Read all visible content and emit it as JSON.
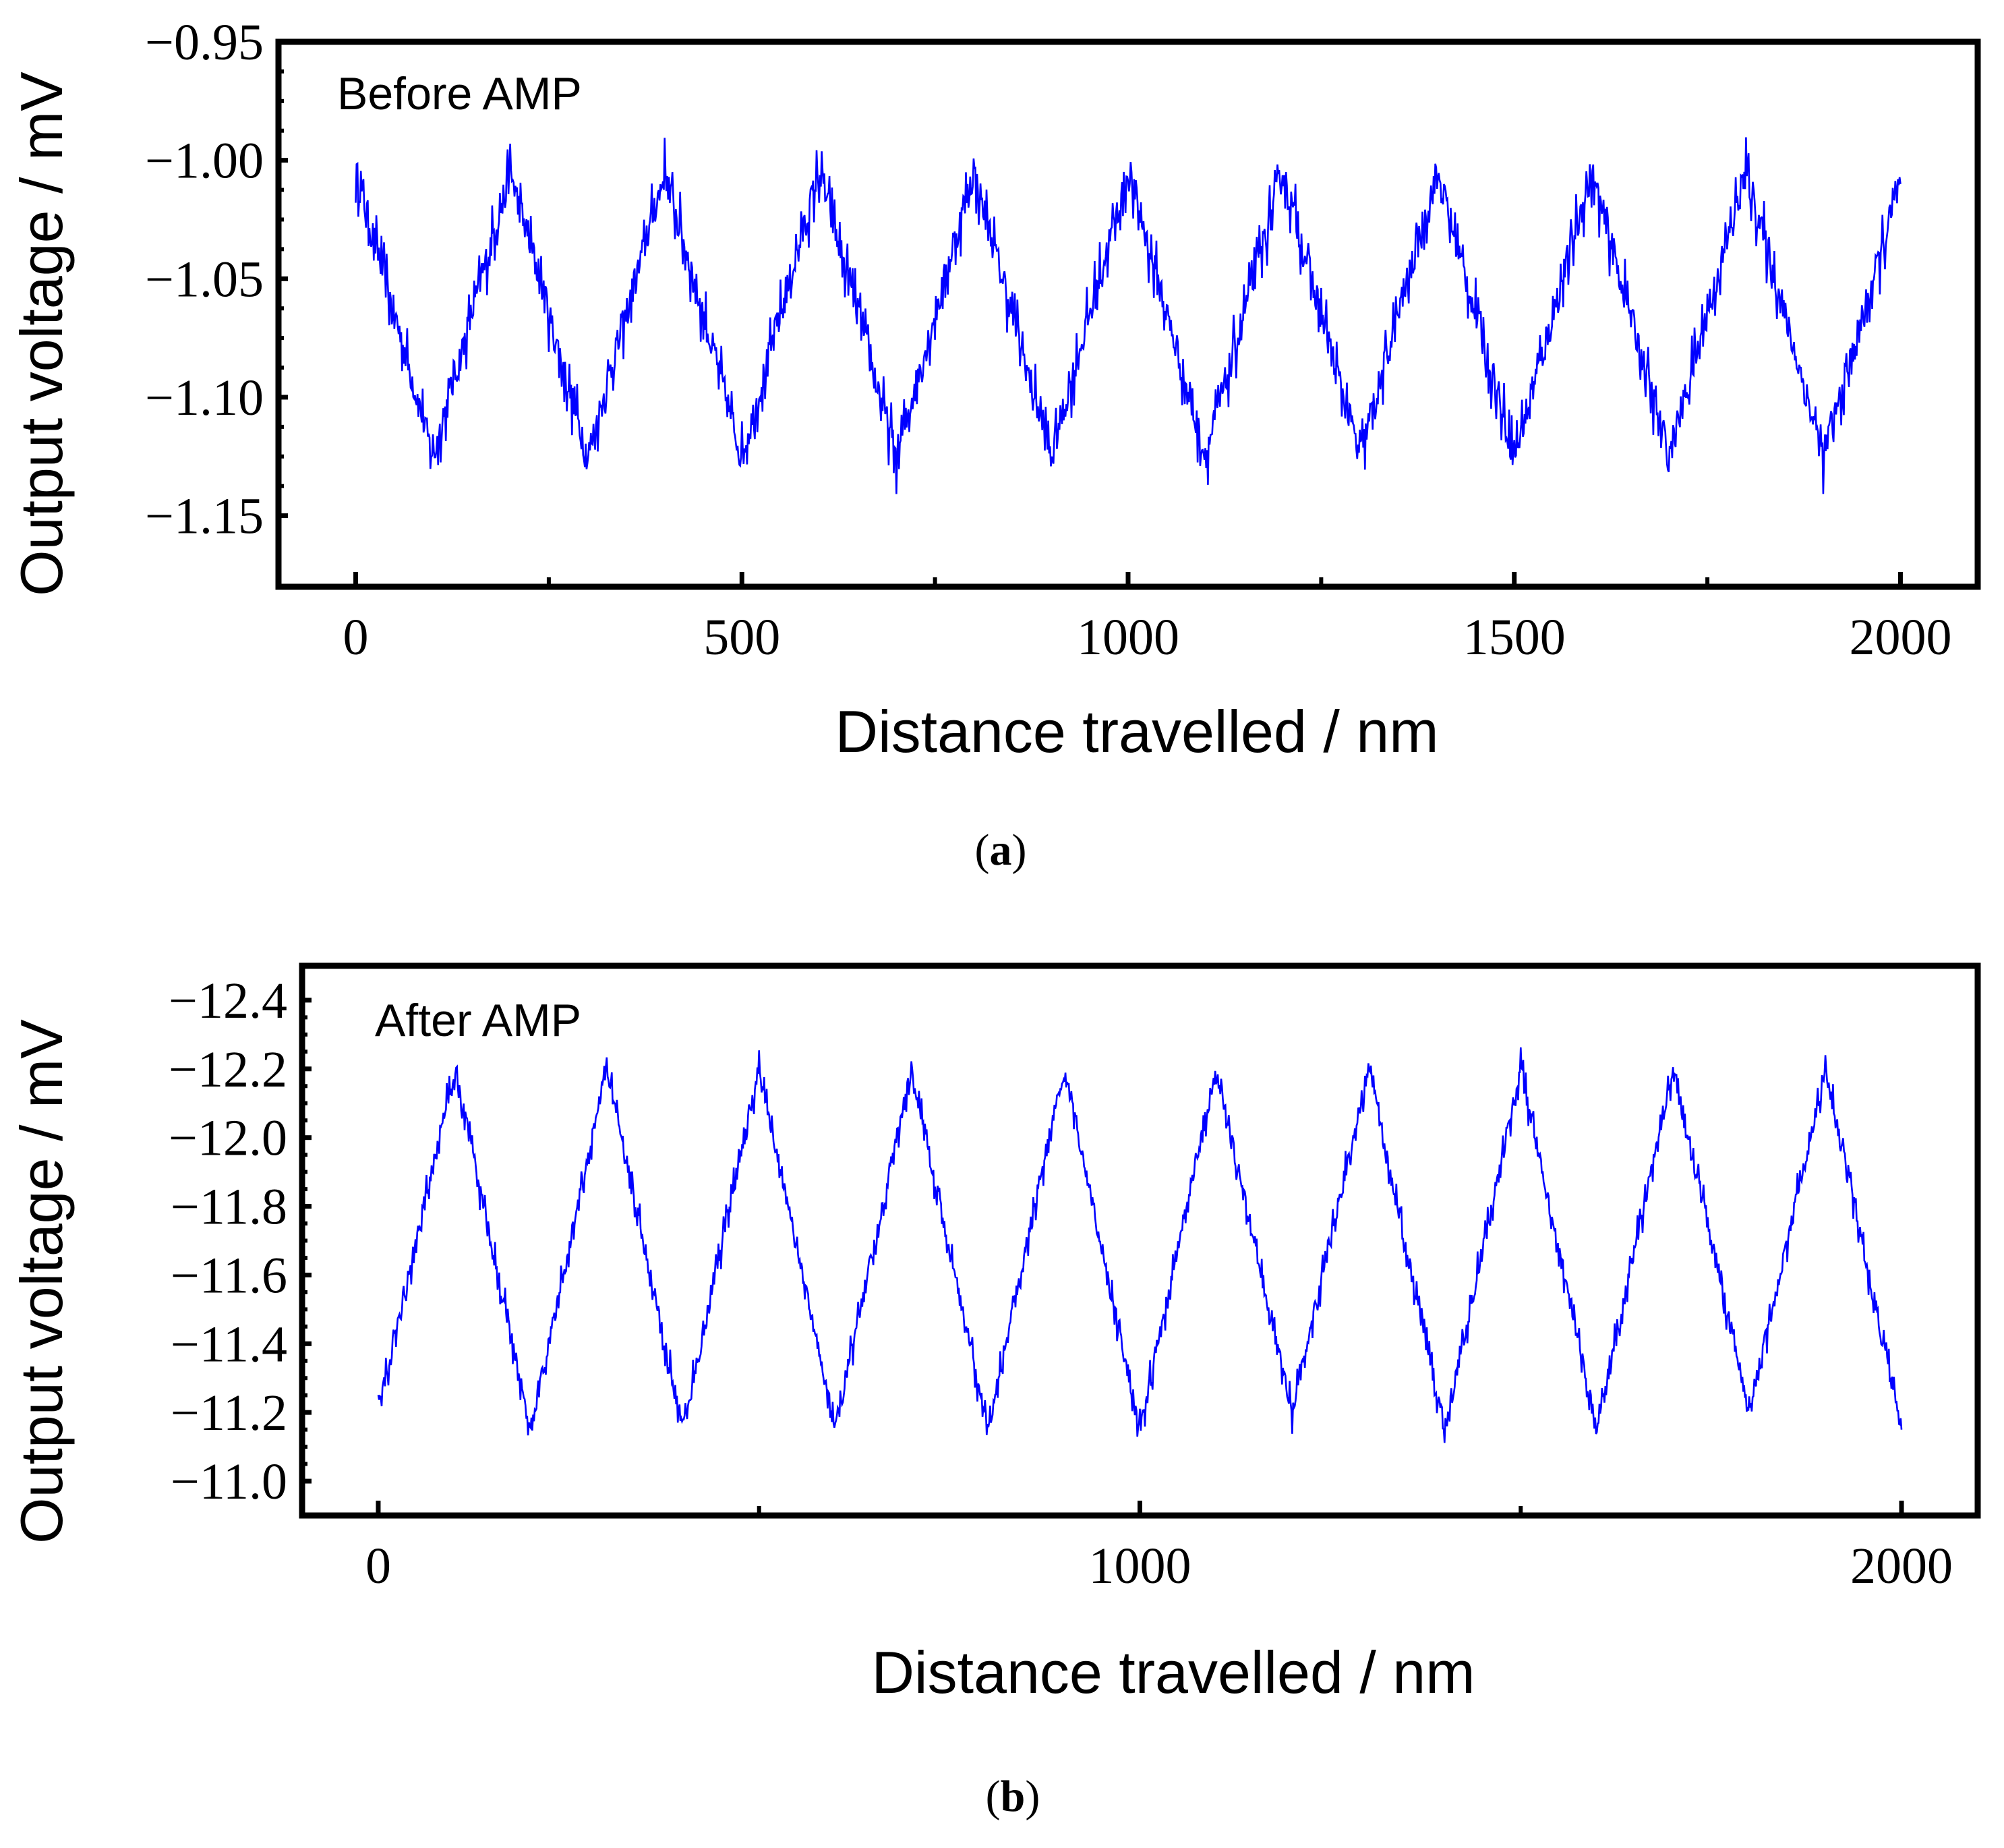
{
  "chart_data": [
    {
      "type": "line",
      "panel_label": "a",
      "annotation": "Before AMP",
      "title": "",
      "xlabel": "Distance travelled / nm",
      "ylabel": "Output voltage / mV",
      "xlim": [
        -100,
        2100
      ],
      "ylim": [
        -1.18,
        -0.95
      ],
      "x_ticks": [
        0,
        500,
        1000,
        1500,
        2000
      ],
      "x_tick_labels": [
        "0",
        "500",
        "1000",
        "1500",
        "2000"
      ],
      "y_ticks": [
        -1.15,
        -1.1,
        -1.05,
        -1.0,
        -0.95
      ],
      "y_tick_labels": [
        "−1.15",
        "−1.10",
        "−1.05",
        "−1.00",
        "−0.95"
      ],
      "grid": false,
      "color": "#0000ff",
      "series": [
        {
          "name": "Before AMP",
          "x": [
            0,
            100,
            200,
            300,
            400,
            500,
            600,
            700,
            800,
            900,
            1000,
            1100,
            1200,
            1300,
            1400,
            1500,
            1600,
            1700,
            1800,
            1900,
            2000
          ],
          "y": [
            -1.005,
            -1.125,
            -1.005,
            -1.125,
            -1.005,
            -1.125,
            -1.005,
            -1.125,
            -1.005,
            -1.125,
            -1.005,
            -1.125,
            -1.005,
            -1.125,
            -1.005,
            -1.125,
            -1.005,
            -1.125,
            -1.005,
            -1.125,
            -1.01
          ],
          "noise_amplitude": 0.02
        }
      ]
    },
    {
      "type": "line",
      "panel_label": "b",
      "annotation": "After AMP",
      "title": "",
      "xlabel": "Distance travelled / nm",
      "ylabel": "Output voltage / mV",
      "xlim": [
        -100,
        2100
      ],
      "ylim": [
        -10.9,
        -12.5
      ],
      "x_ticks": [
        0,
        1000,
        2000
      ],
      "x_tick_labels": [
        "0",
        "1000",
        "2000"
      ],
      "x_minor_ticks": [
        500,
        1500
      ],
      "y_ticks": [
        -11.0,
        -11.2,
        -11.4,
        -11.6,
        -11.8,
        -12.0,
        -12.2,
        -12.4
      ],
      "y_tick_labels": [
        "−11.0",
        "−11.2",
        "−11.4",
        "−11.6",
        "−11.8",
        "−12.0",
        "−12.2",
        "−12.4"
      ],
      "grid": false,
      "color": "#0000ff",
      "series": [
        {
          "name": "After AMP",
          "x": [
            0,
            100,
            200,
            300,
            400,
            500,
            600,
            700,
            800,
            900,
            1000,
            1100,
            1200,
            1300,
            1400,
            1500,
            1600,
            1700,
            1800,
            1900,
            2000
          ],
          "y": [
            -11.2,
            -12.2,
            -11.15,
            -12.2,
            -11.15,
            -12.2,
            -11.15,
            -12.2,
            -11.15,
            -12.2,
            -11.15,
            -12.2,
            -11.2,
            -12.2,
            -11.15,
            -12.2,
            -11.15,
            -12.2,
            -11.2,
            -12.2,
            -11.15
          ],
          "noise_amplitude": 0.08
        }
      ]
    }
  ]
}
